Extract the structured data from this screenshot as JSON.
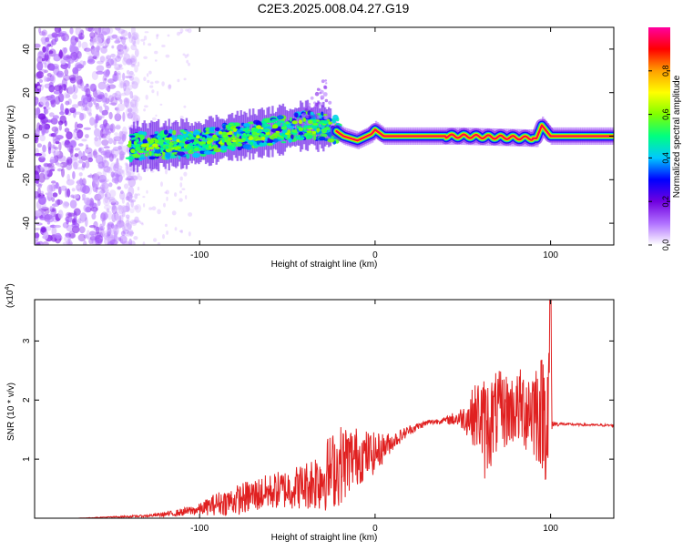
{
  "title": "C2E3.2025.008.04.27.G19",
  "chart_data": [
    {
      "type": "heatmap",
      "xlabel": "Height of straight line (km)",
      "ylabel": "Frequency (Hz)",
      "xlim": [
        -194,
        136
      ],
      "ylim": [
        -50,
        50
      ],
      "xticks": [
        -100,
        0,
        100
      ],
      "yticks": [
        -40,
        -20,
        0,
        20,
        40
      ],
      "colorbar": {
        "label": "Normalized spectral amplitude",
        "range": [
          0,
          1
        ],
        "ticks": [
          0.0,
          0.2,
          0.4,
          0.6,
          0.8
        ],
        "colors": [
          "#ffffff",
          "#b070ff",
          "#7000e0",
          "#0000ff",
          "#00c8ff",
          "#00ff80",
          "#80ff00",
          "#ffff00",
          "#ffa000",
          "#ff0000",
          "#ff00a0"
        ]
      },
      "features": {
        "noise_region_x": [
          -194,
          -135
        ],
        "signal_track": [
          {
            "x": -140,
            "y": -5,
            "amp": 0.45
          },
          {
            "x": -120,
            "y": -4,
            "amp": 0.5
          },
          {
            "x": -100,
            "y": -3,
            "amp": 0.5
          },
          {
            "x": -80,
            "y": 0,
            "amp": 0.55
          },
          {
            "x": -60,
            "y": 2,
            "amp": 0.55
          },
          {
            "x": -40,
            "y": 5,
            "amp": 0.55
          },
          {
            "x": -25,
            "y": 4,
            "amp": 0.6
          },
          {
            "x": -18,
            "y": 0,
            "amp": 0.9
          },
          {
            "x": -10,
            "y": -2,
            "amp": 0.9
          },
          {
            "x": -2,
            "y": 1,
            "amp": 0.9
          },
          {
            "x": 0,
            "y": 3,
            "amp": 0.9
          },
          {
            "x": 5,
            "y": 0,
            "amp": 0.95
          },
          {
            "x": 50,
            "y": 0,
            "amp": 0.95
          },
          {
            "x": 92,
            "y": -1,
            "amp": 0.9
          },
          {
            "x": 95,
            "y": 5,
            "amp": 0.7
          },
          {
            "x": 100,
            "y": 0,
            "amp": 0.95
          },
          {
            "x": 136,
            "y": 0,
            "amp": 0.95
          }
        ]
      }
    },
    {
      "type": "line",
      "xlabel": "Height of straight line (km)",
      "ylabel": "SNR (10 * v/v)",
      "yscale_note": "(x10",
      "yscale_exp": "4",
      "xlim": [
        -194,
        136
      ],
      "ylim": [
        0,
        3.7
      ],
      "xticks": [
        -100,
        0,
        100
      ],
      "yticks": [
        1,
        2,
        3
      ],
      "color": "#e02020",
      "series": [
        {
          "x": [
            -194,
            -170,
            -150,
            -130,
            -115,
            -100,
            -90,
            -80,
            -70,
            -60,
            -50,
            -40,
            -30,
            -20,
            -15,
            -10,
            0,
            10,
            20,
            30,
            40,
            50,
            60,
            62,
            70,
            80,
            90,
            95,
            100,
            101,
            110,
            120,
            136
          ],
          "y": [
            0.0,
            0.0,
            0.02,
            0.04,
            0.08,
            0.15,
            0.25,
            0.3,
            0.38,
            0.45,
            0.5,
            0.55,
            0.7,
            0.9,
            1.0,
            1.05,
            1.1,
            1.3,
            1.5,
            1.62,
            1.66,
            1.7,
            1.75,
            1.5,
            1.8,
            1.85,
            1.9,
            1.8,
            1.85,
            1.6,
            1.59,
            1.58,
            1.57
          ],
          "noise": [
            0,
            0,
            0.01,
            0.02,
            0.05,
            0.1,
            0.2,
            0.25,
            0.3,
            0.3,
            0.35,
            0.4,
            0.6,
            0.7,
            0.6,
            0.5,
            0.35,
            0.15,
            0.08,
            0.05,
            0.05,
            0.2,
            0.7,
            0.9,
            0.7,
            0.6,
            0.9,
            1.0,
            1.5,
            0.05,
            0.02,
            0.02,
            0.02
          ]
        }
      ]
    }
  ]
}
